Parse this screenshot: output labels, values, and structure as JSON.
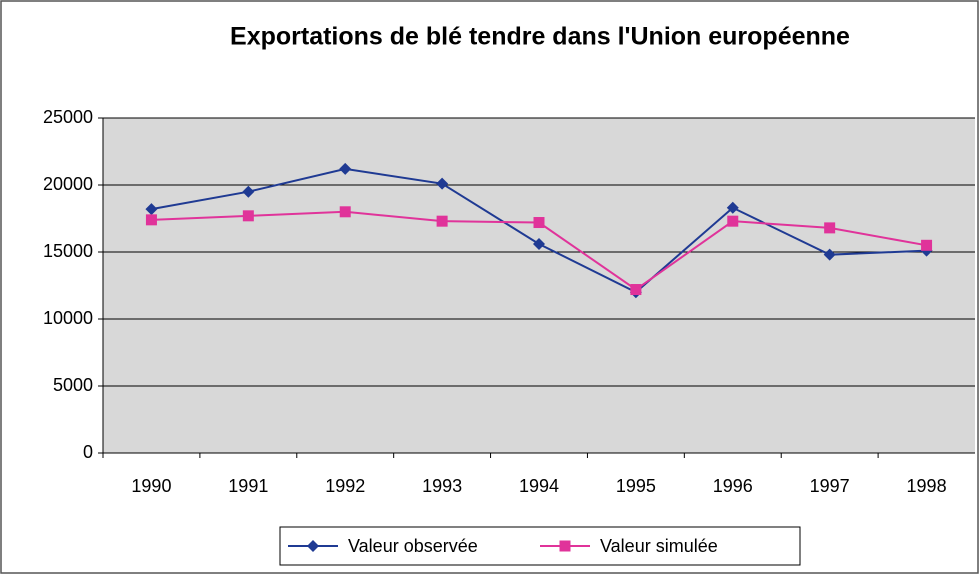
{
  "chart_data": {
    "type": "line",
    "title": "Exportations de blé tendre dans l'Union européenne",
    "categories": [
      "1990",
      "1991",
      "1992",
      "1993",
      "1994",
      "1995",
      "1996",
      "1997",
      "1998"
    ],
    "series": [
      {
        "name": "Valeur observée",
        "color": "#1f3a93",
        "marker": "diamond",
        "values": [
          18200,
          19500,
          21200,
          20100,
          15600,
          12000,
          18300,
          14800,
          15100
        ]
      },
      {
        "name": "Valeur simulée",
        "color": "#e0339a",
        "marker": "square",
        "values": [
          17400,
          17700,
          18000,
          17300,
          17200,
          12200,
          17300,
          16800,
          15500
        ]
      }
    ],
    "ylim": [
      0,
      25000
    ],
    "yticks": [
      0,
      5000,
      10000,
      15000,
      20000,
      25000
    ],
    "grid": true,
    "legend": "bottom"
  }
}
